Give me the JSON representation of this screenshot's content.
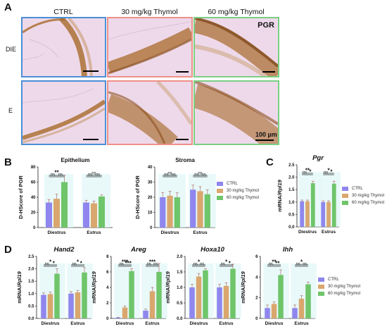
{
  "colors": {
    "ctrl": "#8f86ee",
    "t30": "#d9a76e",
    "t60": "#6fc56a",
    "blue_border": "#4a8fd6",
    "red_border": "#ef9088",
    "green_border": "#79cf83",
    "tissue_bg": "#eed9ea",
    "stain": "#a86a2a",
    "shade": "#dff7f7"
  },
  "panel_a": {
    "letter": "A",
    "columns": [
      "CTRL",
      "30 mg/kg Thymol",
      "60 mg/kg Thymol"
    ],
    "rows": [
      "DIE",
      "E"
    ],
    "marker_label": "PGR",
    "scale_label": "100 µm"
  },
  "panel_b": {
    "letter": "B",
    "legend": [
      "CTRL",
      "30 mg/kg Thymol",
      "60 mg/kg Thymol"
    ]
  },
  "panel_c": {
    "letter": "C",
    "legend": [
      "CTRL",
      "30 mg/kg Thymol",
      "60 mg/kg Thymol"
    ]
  },
  "panel_d": {
    "letter": "D",
    "legend": [
      "CTRL",
      "30 mg/kg Thymol",
      "60 mg/kg Thymol"
    ]
  },
  "chart_data": [
    {
      "id": "epithelium",
      "type": "bar",
      "title": "Epithelium",
      "title_italic": false,
      "ylabel": "D-HScore of PGR",
      "ylabel_italic_part": "",
      "ylim": [
        0,
        80
      ],
      "yticks": [
        0,
        20,
        40,
        60,
        80
      ],
      "categories": [
        "Diestrus",
        "Estrus"
      ],
      "series": [
        {
          "name": "CTRL",
          "values": [
            33,
            33
          ],
          "err": [
            4,
            3
          ]
        },
        {
          "name": "30 mg/kg Thymol",
          "values": [
            38,
            32
          ],
          "err": [
            6,
            3
          ]
        },
        {
          "name": "60 mg/kg Thymol",
          "values": [
            60,
            41
          ],
          "err": [
            9,
            2
          ]
        }
      ],
      "sig": [
        [
          [
            "**",
            0,
            2,
            0
          ],
          [
            "ns",
            0,
            1,
            1
          ],
          [
            "ns",
            1,
            2,
            1
          ]
        ],
        [
          [
            "ns",
            0,
            2,
            0
          ],
          [
            "ns",
            0,
            1,
            1
          ],
          [
            "ns",
            1,
            2,
            1
          ]
        ]
      ]
    },
    {
      "id": "stroma",
      "type": "bar",
      "title": "Stroma",
      "title_italic": false,
      "ylabel": "D-HScore of PGR",
      "ylabel_italic_part": "",
      "ylim": [
        0,
        40
      ],
      "yticks": [
        0,
        10,
        20,
        30,
        40
      ],
      "categories": [
        "Diestrus",
        "Estrus"
      ],
      "series": [
        {
          "name": "CTRL",
          "values": [
            20,
            25
          ],
          "err": [
            3,
            3
          ]
        },
        {
          "name": "30 mg/kg Thymol",
          "values": [
            21,
            24
          ],
          "err": [
            3,
            3
          ]
        },
        {
          "name": "60 mg/kg Thymol",
          "values": [
            20,
            22
          ],
          "err": [
            3,
            3
          ]
        }
      ],
      "sig": [
        [
          [
            "ns",
            0,
            2,
            0
          ],
          [
            "ns",
            0,
            1,
            1
          ],
          [
            "ns",
            1,
            2,
            1
          ]
        ],
        [
          [
            "ns",
            0,
            2,
            0
          ],
          [
            "ns",
            0,
            1,
            1
          ],
          [
            "ns",
            1,
            2,
            1
          ]
        ]
      ]
    },
    {
      "id": "pgr",
      "type": "bar",
      "title": "Pgr",
      "title_italic": true,
      "ylabel": "mRNA/",
      "ylabel_italic_part": "Rpl19",
      "ylim": [
        0,
        2.5
      ],
      "yticks": [
        0,
        0.5,
        1.0,
        1.5,
        2.0,
        2.5
      ],
      "yticklabels": [
        "0.0",
        "0.5",
        "1.0",
        "1.5",
        "2.0",
        "2.5"
      ],
      "categories": [
        "Diestrus",
        "Estrus"
      ],
      "series": [
        {
          "name": "CTRL",
          "values": [
            1.03,
            1.0
          ],
          "err": [
            0.05,
            0.05
          ]
        },
        {
          "name": "30 mg/kg Thymol",
          "values": [
            1.03,
            1.0
          ],
          "err": [
            0.05,
            0.05
          ]
        },
        {
          "name": "60 mg/kg Thymol",
          "values": [
            1.76,
            1.74
          ],
          "err": [
            0.08,
            0.1
          ]
        }
      ],
      "sig": [
        [
          [
            "**",
            0,
            2,
            0
          ],
          [
            "ns",
            0,
            1,
            1
          ],
          [
            "*",
            1,
            2,
            1
          ]
        ],
        [
          [
            "*",
            0,
            2,
            0
          ],
          [
            "ns",
            0,
            1,
            1
          ],
          [
            "*",
            1,
            2,
            1
          ]
        ]
      ]
    },
    {
      "id": "hand2",
      "type": "bar",
      "title": "Hand2",
      "title_italic": true,
      "ylabel": "mRNA/",
      "ylabel_italic_part": "Rpl19",
      "ylim": [
        0,
        2.5
      ],
      "yticks": [
        0,
        0.5,
        1.0,
        1.5,
        2.0,
        2.5
      ],
      "yticklabels": [
        "0.0",
        "0.5",
        "1.0",
        "1.5",
        "2.0",
        "2.5"
      ],
      "categories": [
        "Diestrus",
        "Estrus"
      ],
      "series": [
        {
          "name": "CTRL",
          "values": [
            0.95,
            1.0
          ],
          "err": [
            0.08,
            0.08
          ]
        },
        {
          "name": "30 mg/kg Thymol",
          "values": [
            0.98,
            1.05
          ],
          "err": [
            0.08,
            0.08
          ]
        },
        {
          "name": "60 mg/kg Thymol",
          "values": [
            1.8,
            1.85
          ],
          "err": [
            0.2,
            0.2
          ]
        }
      ],
      "sig": [
        [
          [
            "*",
            0,
            2,
            0
          ],
          [
            "ns",
            0,
            1,
            1
          ],
          [
            "*",
            1,
            2,
            1
          ]
        ],
        [
          [
            "*",
            0,
            2,
            0
          ],
          [
            "ns",
            0,
            1,
            1
          ],
          [
            "*",
            1,
            2,
            1
          ]
        ]
      ]
    },
    {
      "id": "areg",
      "type": "bar",
      "title": "Areg",
      "title_italic": true,
      "ylabel": "mRNA/",
      "ylabel_italic_part": "Rpl19",
      "ylim": [
        0,
        8
      ],
      "yticks": [
        0,
        2,
        4,
        6,
        8
      ],
      "categories": [
        "Diestrus",
        "Estrus"
      ],
      "series": [
        {
          "name": "CTRL",
          "values": [
            0.1,
            1.0
          ],
          "err": [
            0.05,
            0.2
          ]
        },
        {
          "name": "30 mg/kg Thymol",
          "values": [
            1.4,
            3.5
          ],
          "err": [
            0.2,
            0.5
          ]
        },
        {
          "name": "60 mg/kg Thymol",
          "values": [
            6.1,
            6.0
          ],
          "err": [
            0.3,
            1.1
          ]
        }
      ],
      "sig": [
        [
          [
            "***",
            0,
            2,
            0
          ],
          [
            "ns",
            0,
            1,
            1
          ],
          [
            "***",
            1,
            2,
            1
          ]
        ],
        [
          [
            "***",
            0,
            2,
            0
          ],
          [
            "ns",
            0,
            1,
            1
          ],
          [
            "ns",
            1,
            2,
            1
          ]
        ]
      ]
    },
    {
      "id": "hoxa10",
      "type": "bar",
      "title": "Hoxa10",
      "title_italic": true,
      "ylabel": "mRNA/",
      "ylabel_italic_part": "Rpl19",
      "ylim": [
        0,
        2.0
      ],
      "yticks": [
        0,
        0.5,
        1.0,
        1.5,
        2.0
      ],
      "yticklabels": [
        "0.0",
        "0.5",
        "1.0",
        "1.5",
        "2.0"
      ],
      "categories": [
        "Diestrus",
        "Estrus"
      ],
      "series": [
        {
          "name": "CTRL",
          "values": [
            1.0,
            1.0
          ],
          "err": [
            0.1,
            0.1
          ]
        },
        {
          "name": "30 mg/kg Thymol",
          "values": [
            1.35,
            1.05
          ],
          "err": [
            0.1,
            0.1
          ]
        },
        {
          "name": "60 mg/kg Thymol",
          "values": [
            1.55,
            1.6
          ],
          "err": [
            0.05,
            0.15
          ]
        }
      ],
      "sig": [
        [
          [
            "*",
            0,
            2,
            0
          ],
          [
            "ns",
            0,
            1,
            1
          ],
          [
            "ns",
            1,
            2,
            1
          ]
        ],
        [
          [
            "*",
            0,
            2,
            0
          ],
          [
            "ns",
            0,
            1,
            1
          ],
          [
            "*",
            1,
            2,
            1
          ]
        ]
      ]
    },
    {
      "id": "ihh",
      "type": "bar",
      "title": "Ihh",
      "title_italic": true,
      "ylabel": "mRNA/",
      "ylabel_italic_part": "Rpl19",
      "ylim": [
        0,
        6
      ],
      "yticks": [
        0,
        2,
        4,
        6
      ],
      "categories": [
        "Diestrus",
        "Estrus"
      ],
      "series": [
        {
          "name": "CTRL",
          "values": [
            1.0,
            1.0
          ],
          "err": [
            0.3,
            0.3
          ]
        },
        {
          "name": "30 mg/kg Thymol",
          "values": [
            1.4,
            1.9
          ],
          "err": [
            0.2,
            0.3
          ]
        },
        {
          "name": "60 mg/kg Thymol",
          "values": [
            4.2,
            3.3
          ],
          "err": [
            0.5,
            0.2
          ]
        }
      ],
      "sig": [
        [
          [
            "**",
            0,
            2,
            0
          ],
          [
            "ns",
            0,
            1,
            1
          ],
          [
            "**",
            1,
            2,
            1
          ]
        ],
        [
          [
            "*",
            0,
            2,
            0
          ],
          [
            "ns",
            0,
            1,
            1
          ],
          [
            "ns",
            1,
            2,
            1
          ]
        ]
      ]
    }
  ]
}
